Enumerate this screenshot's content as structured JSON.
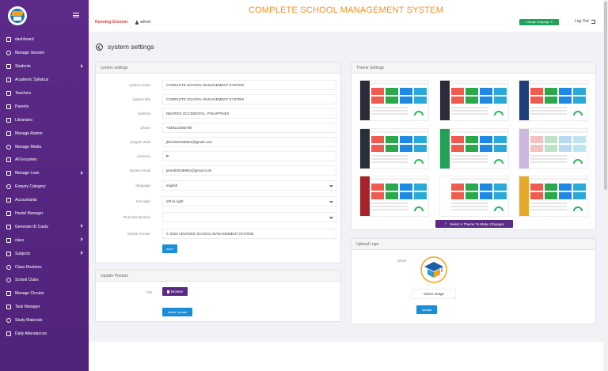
{
  "header": {
    "title": "COMPLETE SCHOOL MANAGEMENT SYSTEM",
    "running_session_label": "Running Session:",
    "user": "admin",
    "change_language": "Change Language",
    "logout": "Log Out"
  },
  "sidebar": {
    "items": [
      {
        "label": "dashboard",
        "icon": "dashboard-icon",
        "arrow": false
      },
      {
        "label": "Manage Session",
        "icon": "gear-icon",
        "arrow": false
      },
      {
        "label": "Students",
        "icon": "users-icon",
        "arrow": true
      },
      {
        "label": "Academic Syllabus",
        "icon": "book-icon",
        "arrow": false
      },
      {
        "label": "Teachers",
        "icon": "users-icon",
        "arrow": false
      },
      {
        "label": "Parents",
        "icon": "users-icon",
        "arrow": false
      },
      {
        "label": "Librarians",
        "icon": "users-icon",
        "arrow": false
      },
      {
        "label": "Manage Alumni",
        "icon": "users-icon",
        "arrow": false
      },
      {
        "label": "Manage Media",
        "icon": "circle-icon",
        "arrow": false
      },
      {
        "label": "All Enquiries",
        "icon": "book-icon",
        "arrow": false
      },
      {
        "label": "Manage Loan",
        "icon": "users-icon",
        "arrow": true
      },
      {
        "label": "Enquiry Category",
        "icon": "gear-icon",
        "arrow": false
      },
      {
        "label": "Accountants",
        "icon": "users-icon",
        "arrow": false
      },
      {
        "label": "Hostel Manager",
        "icon": "users-icon",
        "arrow": false
      },
      {
        "label": "Generate ID Cards",
        "icon": "users-icon",
        "arrow": true
      },
      {
        "label": "class",
        "icon": "users-icon",
        "arrow": true
      },
      {
        "label": "Subjects",
        "icon": "book-icon",
        "arrow": true
      },
      {
        "label": "Class Routines",
        "icon": "circle-icon",
        "arrow": false
      },
      {
        "label": "School Clubs",
        "icon": "gear-icon",
        "arrow": false
      },
      {
        "label": "Manage Circular",
        "icon": "users-icon",
        "arrow": false
      },
      {
        "label": "Task Manager",
        "icon": "users-icon",
        "arrow": false
      },
      {
        "label": "Study Materials",
        "icon": "circle-icon",
        "arrow": false
      },
      {
        "label": "Daily Attendances",
        "icon": "book-icon",
        "arrow": false
      }
    ]
  },
  "page": {
    "title": "system settings"
  },
  "settings": {
    "panel_title": "system settings",
    "fields": [
      {
        "label": "system name",
        "value": "COMPLETE SCHOOL MANAGEMENT SYSTEM",
        "type": "text"
      },
      {
        "label": "system title",
        "value": "COMPLETE SCHOOL MANAGEMENT SYSTEM",
        "type": "text"
      },
      {
        "label": "address",
        "value": "NEGROS OCCIDENTAL, PHILIPPINES",
        "type": "text"
      },
      {
        "label": "phone",
        "value": "+639123456789",
        "type": "text"
      },
      {
        "label": "paypal email",
        "value": "jkkenb00189561@gmail.com",
        "type": "text"
      },
      {
        "label": "currency",
        "value": "₱",
        "type": "text"
      },
      {
        "label": "system email",
        "value": "jeemb00189561@gmail.com",
        "type": "text"
      },
      {
        "label": "language",
        "value": "english",
        "type": "select"
      },
      {
        "label": "text align",
        "value": "left-to-right",
        "type": "select"
      },
      {
        "label": "Running Session",
        "value": "",
        "type": "select"
      },
      {
        "label": "System Footer",
        "value": "© 2022 ADVANCE SCHOOL MANAGEMENT SYSTEM",
        "type": "text"
      }
    ],
    "save_label": "save"
  },
  "update_product": {
    "panel_title": "Update Product",
    "file_label": "File",
    "browse_label": "Browse",
    "install_label": "Install Update"
  },
  "theme": {
    "panel_title": "Theme Settings",
    "select_label": "Select A Theme To Make Changes",
    "themes": [
      {
        "side": "#2b2b3a",
        "cards": [
          "#f05a4f",
          "#2aa84a",
          "#1e88e5",
          "#2aa9d8"
        ]
      },
      {
        "side": "#2b2b3a",
        "cards": [
          "#f05a4f",
          "#2aa84a",
          "#1e88e5",
          "#2aa9d8"
        ]
      },
      {
        "side": "#1f3f7a",
        "cards": [
          "#f05a4f",
          "#2aa84a",
          "#1e88e5",
          "#2aa9d8"
        ]
      },
      {
        "side": "#26303a",
        "cards": [
          "#f05a4f",
          "#2aa84a",
          "#1e88e5",
          "#2aa9d8"
        ]
      },
      {
        "side": "#22a055",
        "cards": [
          "#f05a4f",
          "#2aa84a",
          "#1e88e5",
          "#2aa9d8"
        ]
      },
      {
        "side": "#cbb8dc",
        "cards": [
          "#f4c1c1",
          "#bde3c6",
          "#b9d9f1",
          "#bfe6ef"
        ]
      },
      {
        "side": "#a8222a",
        "cards": [
          "#f05a4f",
          "#2aa84a",
          "#1e88e5",
          "#2aa9d8"
        ]
      },
      {
        "side": "#ffffff",
        "cards": [
          "#f05a4f",
          "#2aa84a",
          "#1e88e5",
          "#2aa9d8"
        ]
      },
      {
        "side": "#e5a928",
        "cards": [
          "#f05a4f",
          "#2aa84a",
          "#1e88e5",
          "#2aa9d8"
        ]
      }
    ]
  },
  "upload_logo": {
    "panel_title": "Upload Logo",
    "photo_label": "photo",
    "select_image": "Select image",
    "upload_label": "Upload"
  },
  "colors": {
    "sidebar": "#5b2a86",
    "title": "#f58f1f",
    "accent_blue": "#1a8ed8",
    "green": "#1fa25b"
  }
}
